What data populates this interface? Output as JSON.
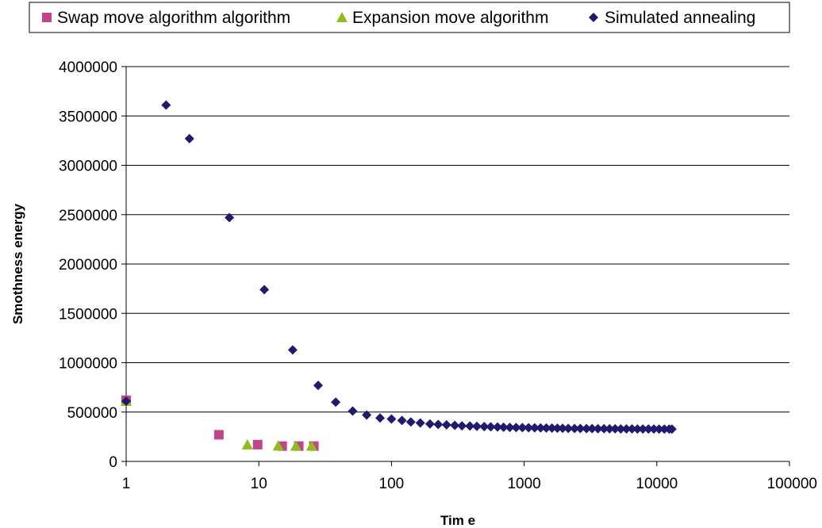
{
  "chart_data": {
    "type": "scatter",
    "xlabel": "Tim e",
    "ylabel": "Smothness energy",
    "x_scale": "log",
    "xlim": [
      1,
      100000
    ],
    "ylim": [
      0,
      4000000
    ],
    "x_ticks": [
      "1",
      "10",
      "100",
      "1000",
      "10000",
      "100000"
    ],
    "y_ticks": [
      "0",
      "500000",
      "1000000",
      "1500000",
      "2000000",
      "2500000",
      "3000000",
      "3500000",
      "4000000"
    ],
    "grid": "horizontal",
    "legend_position": "top",
    "series": [
      {
        "name": "Swap move algorithm algorithm",
        "marker": "square",
        "color": "#c0458a",
        "points": [
          [
            1,
            620000
          ],
          [
            5,
            270000
          ],
          [
            9.8,
            170000
          ],
          [
            15,
            155000
          ],
          [
            20,
            155000
          ],
          [
            26,
            155000
          ]
        ]
      },
      {
        "name": "Expansion move algorithm",
        "marker": "triangle",
        "color": "#8fbc1e",
        "points": [
          [
            1,
            610000
          ],
          [
            8.2,
            170000
          ],
          [
            14,
            158000
          ],
          [
            19,
            157000
          ],
          [
            25,
            157000
          ]
        ]
      },
      {
        "name": "Simulated annealing",
        "marker": "diamond",
        "color": "#1f1a6e",
        "points": [
          [
            1,
            610000
          ],
          [
            2,
            3610000
          ],
          [
            3,
            3270000
          ],
          [
            6,
            2470000
          ],
          [
            11,
            1740000
          ],
          [
            18,
            1130000
          ],
          [
            28,
            770000
          ],
          [
            38,
            600000
          ],
          [
            51,
            510000
          ],
          [
            65,
            470000
          ],
          [
            82,
            440000
          ],
          [
            100,
            430000
          ],
          [
            120,
            415000
          ],
          [
            140,
            400000
          ],
          [
            165,
            390000
          ],
          [
            195,
            380000
          ],
          [
            225,
            375000
          ],
          [
            260,
            370000
          ],
          [
            300,
            365000
          ],
          [
            340,
            360000
          ],
          [
            390,
            358000
          ],
          [
            440,
            355000
          ],
          [
            500,
            352000
          ],
          [
            560,
            350000
          ],
          [
            630,
            348000
          ],
          [
            700,
            346000
          ],
          [
            780,
            344000
          ],
          [
            870,
            343000
          ],
          [
            970,
            342000
          ],
          [
            1080,
            341000
          ],
          [
            1200,
            340000
          ],
          [
            1330,
            339000
          ],
          [
            1470,
            338000
          ],
          [
            1620,
            337000
          ],
          [
            1780,
            336000
          ],
          [
            1950,
            335000
          ],
          [
            2150,
            334000
          ],
          [
            2400,
            333000
          ],
          [
            2650,
            333000
          ],
          [
            2950,
            332000
          ],
          [
            3250,
            332000
          ],
          [
            3600,
            331000
          ],
          [
            4000,
            331000
          ],
          [
            4400,
            330000
          ],
          [
            4850,
            330000
          ],
          [
            5350,
            329000
          ],
          [
            5900,
            329000
          ],
          [
            6500,
            329000
          ],
          [
            7150,
            328000
          ],
          [
            7850,
            328000
          ],
          [
            8650,
            328000
          ],
          [
            9500,
            328000
          ],
          [
            10400,
            327000
          ],
          [
            11400,
            327000
          ],
          [
            12400,
            327000
          ],
          [
            13000,
            327000
          ]
        ]
      }
    ]
  }
}
